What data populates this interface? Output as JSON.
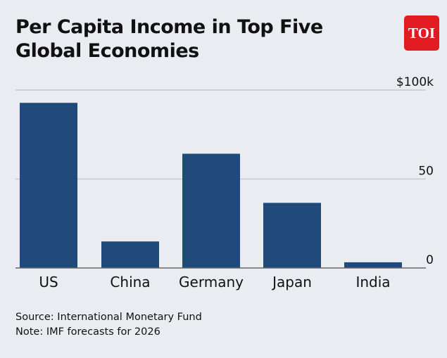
{
  "title": "Per Capita Income in Top Five Global Economies",
  "logo": "TOI",
  "source": "Source: International Monetary Fund",
  "note": "Note: IMF forecasts for 2026",
  "colors": {
    "bar": "#1f4a7a",
    "background": "#e9edf2",
    "logo": "#e21b22"
  },
  "chart_data": {
    "type": "bar",
    "title": "Per Capita Income in Top Five Global Economies",
    "categories": [
      "US",
      "China",
      "Germany",
      "Japan",
      "India"
    ],
    "values": [
      92.8,
      14.9,
      64.2,
      36.6,
      3.2
    ],
    "unit": "thousand USD",
    "ylim": [
      0,
      100
    ],
    "yticks": [
      0,
      50,
      100
    ],
    "ytick_labels": [
      "0",
      "50",
      "$100k"
    ],
    "grid": true,
    "yaxis_position": "right"
  }
}
